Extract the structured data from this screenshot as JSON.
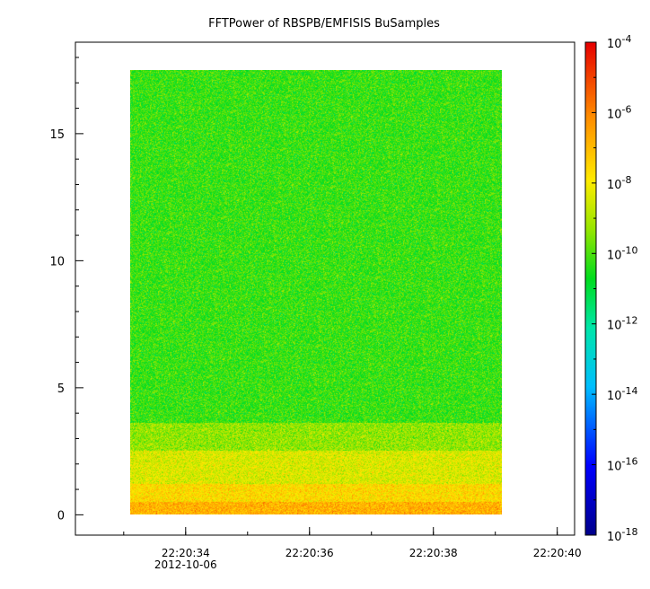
{
  "chart_data": {
    "type": "heatmap",
    "title": "FFTPower of RBSPB/EMFISIS  BuSamples",
    "xlabel": "",
    "ylabel": "",
    "x_ticks": [
      "22:20:34",
      "22:20:36",
      "22:20:38",
      "22:20:40"
    ],
    "x_date_label": "2012-10-06",
    "y_ticks": [
      0,
      5,
      10,
      15
    ],
    "ylim": [
      -0.8,
      18.6
    ],
    "data_time_range": [
      "22:20:33.1",
      "22:20:39.1"
    ],
    "data_freq_range": [
      0,
      17.5
    ],
    "colorbar": {
      "scale": "log",
      "range_exponents": [
        -18,
        -4
      ],
      "tick_base": "10",
      "tick_exponents": [
        "-18",
        "-16",
        "-14",
        "-12",
        "-10",
        "-8",
        "-6",
        "-4"
      ]
    },
    "bands": [
      {
        "freq_range": [
          0,
          0.5
        ],
        "log10_power": -6.8
      },
      {
        "freq_range": [
          0.5,
          1.2
        ],
        "log10_power": -7.6
      },
      {
        "freq_range": [
          1.2,
          2.5
        ],
        "log10_power": -8.4
      },
      {
        "freq_range": [
          2.5,
          3.6
        ],
        "log10_power": -9.3
      },
      {
        "freq_range": [
          3.6,
          17.5
        ],
        "log10_power": -10.2
      }
    ]
  }
}
